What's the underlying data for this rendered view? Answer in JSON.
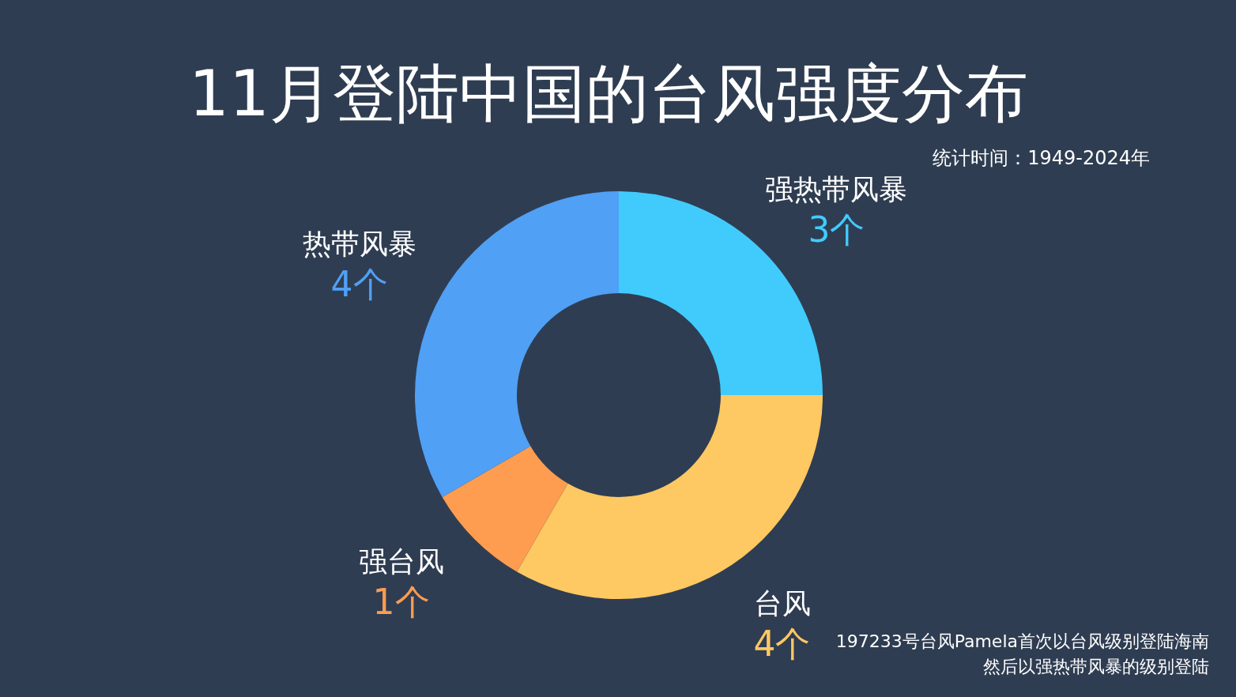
{
  "chart_data": {
    "type": "donut",
    "title": "11月登陆中国的台风强度分布",
    "subtitle": "统计时间：1949-2024年",
    "categories": [
      "强热带风暴",
      "台风",
      "强台风",
      "热带风暴"
    ],
    "values": [
      3,
      4,
      1,
      4
    ],
    "value_labels": [
      "3个",
      "4个",
      "1个",
      "4个"
    ],
    "colors": [
      "#41cbfd",
      "#fec862",
      "#fe9c50",
      "#50a0f5"
    ],
    "legend": false,
    "annotations": [
      "197233号台风Pamela首次以台风级别登陆海南",
      "然后以强热带风暴的级别登陆"
    ]
  }
}
